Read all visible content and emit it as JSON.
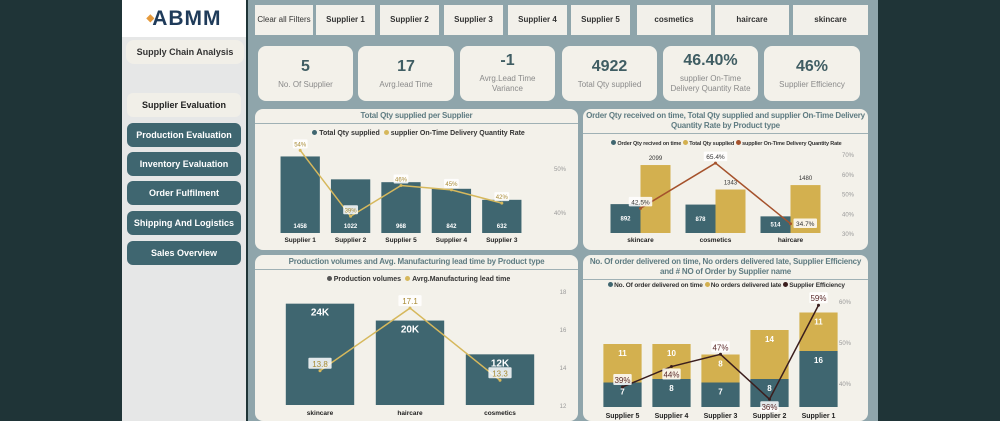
{
  "logo": "ABMM",
  "sidebar": {
    "title": "Supply Chain Analysis",
    "items": [
      {
        "label": "Supplier Evaluation",
        "active": true
      },
      {
        "label": "Production Evaluation"
      },
      {
        "label": "Inventory Evaluation"
      },
      {
        "label": "Order Fulfilment"
      },
      {
        "label": "Shipping And Logistics"
      },
      {
        "label": "Sales Overview"
      }
    ]
  },
  "filters": [
    "Clear all Filters",
    "Supplier 1",
    "Supplier 2",
    "Supplier 3",
    "Supplier 4",
    "Supplier 5",
    "cosmetics",
    "haircare",
    "skincare"
  ],
  "kpis": [
    {
      "value": "5",
      "label": "No. Of Supplier"
    },
    {
      "value": "17",
      "label": "Avrg.lead Time"
    },
    {
      "value": "-1",
      "label": "Avrg.Lead Time Variance"
    },
    {
      "value": "4922",
      "label": "Total Qty supplied"
    },
    {
      "value": "46.40%",
      "label": "supplier On-Time Delivery Quantity Rate"
    },
    {
      "value": "46%",
      "label": "Supplier Efficiency"
    }
  ],
  "colors": {
    "teal": "#3f6670",
    "gold": "#d3b04f",
    "line1": "#d6b85c",
    "line2": "#a5522c",
    "line4": "#3b1e1e"
  },
  "chart_data": [
    {
      "type": "bar+line",
      "title": "Total Qty supplied per Supplier",
      "legend": [
        "Total Qty supplied",
        "supplier On-Time Delivery Quantity Rate"
      ],
      "categories": [
        "Supplier 1",
        "Supplier 2",
        "Supplier 5",
        "Supplier 4",
        "Supplier 3"
      ],
      "series": [
        {
          "name": "Total Qty supplied",
          "type": "bar",
          "values": [
            1458,
            1022,
            968,
            842,
            632
          ],
          "labels": [
            "1458",
            "1022",
            "968",
            "842",
            "632"
          ]
        },
        {
          "name": "supplier On-Time Delivery Quantity Rate",
          "type": "line",
          "axis": "right",
          "values": [
            54,
            39,
            46,
            45,
            42
          ],
          "labels": [
            "54%",
            "39%",
            "46%",
            "45%",
            "42%"
          ]
        }
      ],
      "right_ticks": [
        "40%",
        "50%"
      ],
      "right_tick_values": [
        40,
        50
      ],
      "ylim": [
        0,
        1600
      ],
      "y2lim": [
        35.2,
        54.3
      ]
    },
    {
      "type": "grouped-bar+line",
      "title": "Order Qty received on time, Total Qty supplied and supplier On-Time Delivery Quantity Rate by Product type",
      "legend": [
        "Order Qty recived on time",
        "Total Qty supplied",
        "supplier On-Time Delivery Quantity Rate"
      ],
      "categories": [
        "skincare",
        "cosmetics",
        "haircare"
      ],
      "series": [
        {
          "name": "Order Qty recived on time",
          "type": "bar",
          "values": [
            892,
            878,
            514
          ],
          "labels": [
            "892",
            "878",
            "514"
          ]
        },
        {
          "name": "Total Qty supplied",
          "type": "bar",
          "values": [
            2099,
            1343,
            1480
          ],
          "labels": [
            "2099",
            "1343",
            "1480"
          ]
        },
        {
          "name": "supplier On-Time Delivery Quantity Rate",
          "type": "line",
          "axis": "right",
          "values": [
            42.5,
            65.4,
            34.7
          ],
          "labels": [
            "42.5%",
            "65.4%",
            "34.7%"
          ]
        }
      ],
      "right_ticks": [
        "30%",
        "40%",
        "50%",
        "60%",
        "70%"
      ],
      "right_tick_values": [
        30,
        40,
        50,
        60,
        70
      ],
      "ylim": [
        0,
        2440
      ],
      "y2lim": [
        30,
        70
      ]
    },
    {
      "type": "bar+line",
      "title": "Production volumes and Avg. Manufacturing lead time by Product type",
      "legend": [
        "Production volumes",
        "Avrg.Manufacturing lead time"
      ],
      "categories": [
        "skincare",
        "haircare",
        "cosmetics"
      ],
      "series": [
        {
          "name": "Production volumes",
          "type": "bar",
          "values": [
            24000,
            20000,
            12000
          ],
          "labels": [
            "24K",
            "20K",
            "12K"
          ]
        },
        {
          "name": "Avrg.Manufacturing lead time",
          "type": "line",
          "axis": "right",
          "values": [
            13.8,
            17.1,
            13.3
          ],
          "labels": [
            "13.8",
            "17.1",
            "13.3"
          ]
        }
      ],
      "right_ticks": [
        "12",
        "14",
        "16",
        "18"
      ],
      "right_tick_values": [
        12,
        14,
        16,
        18
      ],
      "ylim": [
        0,
        27000
      ],
      "y2lim": [
        12,
        18
      ]
    },
    {
      "type": "stacked-bar+line",
      "title": "No. Of order delivered on time, No orders delivered late, Supplier Efficiency and # NO of Order by Supplier name",
      "legend": [
        "No. Of order delivered on time",
        "No orders delivered late",
        "Supplier Efficiency"
      ],
      "categories": [
        "Supplier 5",
        "Supplier 4",
        "Supplier 3",
        "Supplier 2",
        "Supplier 1"
      ],
      "series": [
        {
          "name": "No. Of order delivered on time",
          "type": "bar",
          "values": [
            7,
            8,
            7,
            8,
            16
          ],
          "labels": [
            "7",
            "8",
            "7",
            "8",
            "16"
          ]
        },
        {
          "name": "No orders delivered late",
          "type": "bar",
          "values": [
            11,
            10,
            8,
            14,
            11
          ],
          "labels": [
            "11",
            "10",
            "8",
            "14",
            "11"
          ]
        },
        {
          "name": "Supplier Efficiency",
          "type": "line",
          "axis": "right",
          "values": [
            39,
            44,
            47,
            36,
            59
          ],
          "labels": [
            "39%",
            "44%",
            "47%",
            "36%",
            "59%"
          ]
        }
      ],
      "right_ticks": [
        "40%",
        "50%",
        "60%"
      ],
      "right_tick_values": [
        40,
        50,
        60
      ],
      "ylim": [
        0,
        32
      ],
      "y2lim": [
        34.1,
        61.5
      ]
    }
  ]
}
